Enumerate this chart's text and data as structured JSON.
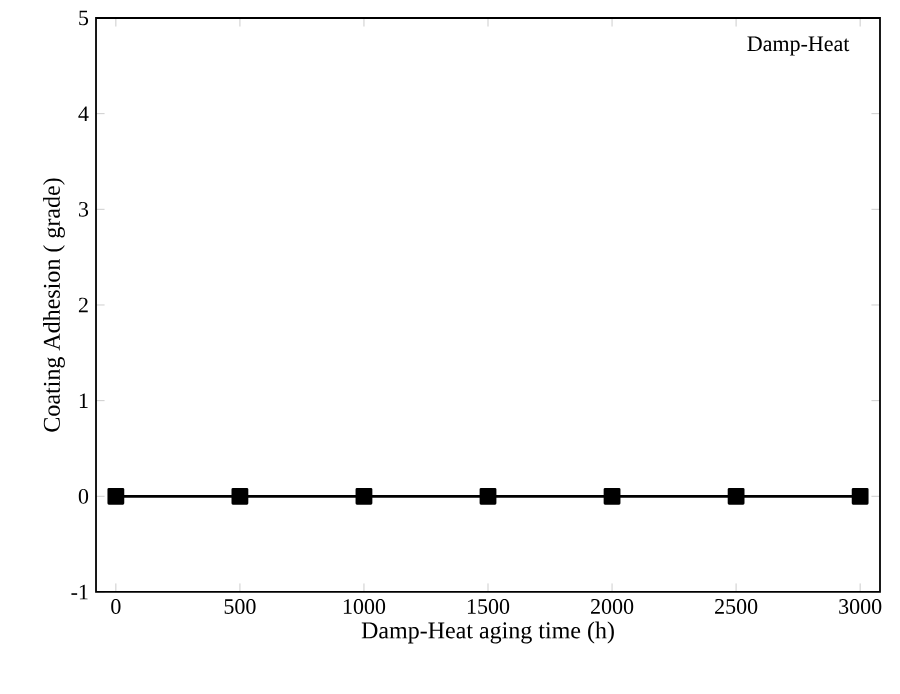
{
  "chart_data": {
    "type": "line",
    "xlabel": "Damp-Heat aging time (h)",
    "ylabel": "Coating Adhesion ( grade)",
    "annotations": [
      "Damp-Heat"
    ],
    "x": [
      0,
      500,
      1000,
      1500,
      2000,
      2500,
      3000
    ],
    "series": [
      {
        "color": "#000000",
        "values": [
          0,
          0,
          0,
          0,
          0,
          0,
          0
        ]
      }
    ],
    "xlim": [
      -80,
      3080
    ],
    "ylim": [
      -1,
      5
    ],
    "xticks": [
      0,
      500,
      1000,
      1500,
      2000,
      2500,
      3000
    ],
    "yticks": [
      -1,
      0,
      1,
      2,
      3,
      4,
      5
    ],
    "marker": "square",
    "line_style": "solid",
    "grid": false
  }
}
